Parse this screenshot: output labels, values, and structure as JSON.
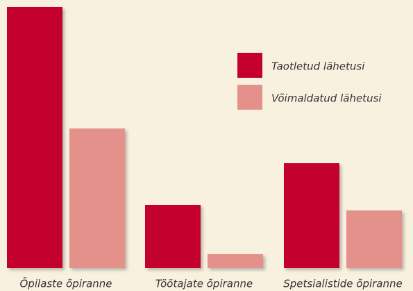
{
  "chart_data": {
    "type": "bar",
    "categories": [
      "Õpilaste õpiranne",
      "Töötajate õpiranne",
      "Spetsialistide õpiranne"
    ],
    "series": [
      {
        "name": "Taotletud lähetusi",
        "color": "#c4002f",
        "values": [
          376,
          91,
          151
        ]
      },
      {
        "name": "Võimaldatud lähetusi",
        "color": "#e4918b",
        "values": [
          201,
          20,
          83
        ]
      }
    ],
    "ylim": [
      0,
      376
    ]
  }
}
